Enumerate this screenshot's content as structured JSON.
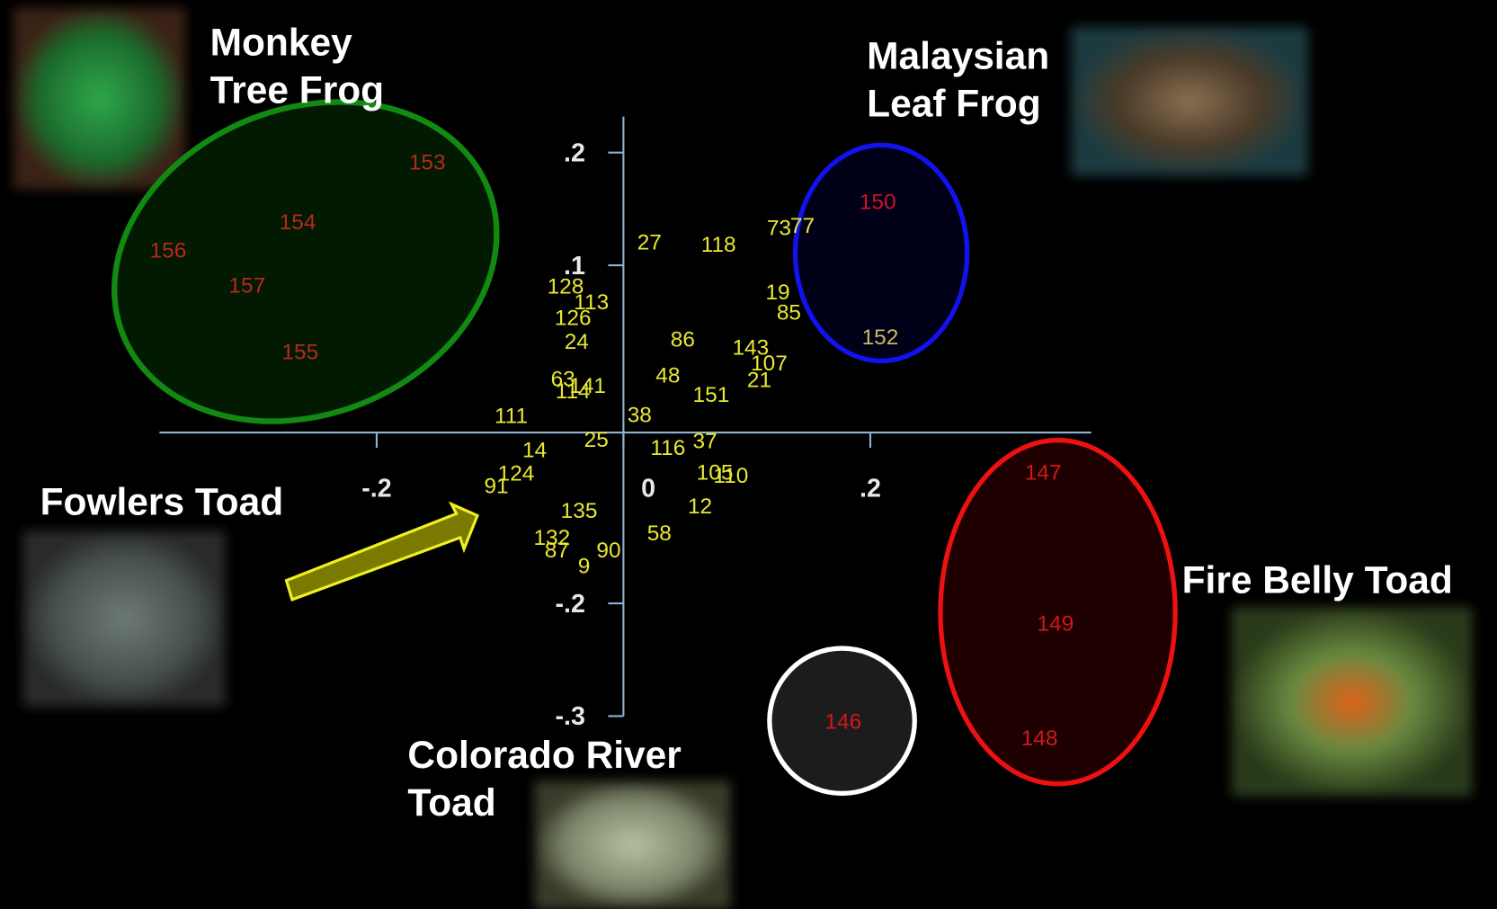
{
  "chart_data": {
    "type": "scatter",
    "xlim": [
      -0.376,
      0.379
    ],
    "ylim": [
      -0.3,
      0.232
    ],
    "xticks": [
      {
        "value": -0.2,
        "label": "-.2"
      },
      {
        "value": 0,
        "label": "0"
      },
      {
        "value": 0.2,
        "label": ".2"
      }
    ],
    "yticks": [
      {
        "value": 0.2,
        "label": ".2"
      },
      {
        "value": 0.1,
        "label": ".1"
      },
      {
        "value": -0.2,
        "label": "-.2"
      },
      {
        "value": -0.3,
        "label": "-.3"
      }
    ],
    "points": [
      {
        "label": "153",
        "x": -0.159,
        "y": 0.19,
        "color": "#b8281c"
      },
      {
        "label": "154",
        "x": -0.264,
        "y": 0.137,
        "color": "#b8281c"
      },
      {
        "label": "156",
        "x": -0.369,
        "y": 0.112,
        "color": "#b8281c"
      },
      {
        "label": "157",
        "x": -0.305,
        "y": 0.081,
        "color": "#b8281c"
      },
      {
        "label": "155",
        "x": -0.262,
        "y": 0.022,
        "color": "#b8281c"
      },
      {
        "label": "150",
        "x": 0.206,
        "y": 0.155,
        "color": "#d0102a"
      },
      {
        "label": "152",
        "x": 0.208,
        "y": 0.035,
        "color": "#c8b860"
      },
      {
        "label": "147",
        "x": 0.34,
        "y": -0.085,
        "color": "#d01818"
      },
      {
        "label": "149",
        "x": 0.35,
        "y": -0.219,
        "color": "#d01818"
      },
      {
        "label": "148",
        "x": 0.337,
        "y": -0.321,
        "color": "#d01818"
      },
      {
        "label": "146",
        "x": 0.178,
        "y": -0.306,
        "color": "#d01818"
      },
      {
        "label": "111",
        "x": -0.091,
        "y": -0.035,
        "color": "#e8e830"
      },
      {
        "label": "58",
        "x": 0.029,
        "y": -0.139,
        "color": "#e8e830"
      },
      {
        "label": "12",
        "x": 0.062,
        "y": -0.115,
        "color": "#e8e830"
      },
      {
        "label": "9",
        "x": -0.032,
        "y": -0.168,
        "color": "#e8e830"
      },
      {
        "label": "90",
        "x": -0.012,
        "y": -0.154,
        "color": "#e8e830"
      },
      {
        "label": "87",
        "x": -0.054,
        "y": -0.154,
        "color": "#e8e830"
      },
      {
        "label": "132",
        "x": -0.058,
        "y": -0.143,
        "color": "#e8e830"
      },
      {
        "label": "135",
        "x": -0.036,
        "y": -0.119,
        "color": "#e8e830"
      },
      {
        "label": "105",
        "x": 0.074,
        "y": -0.085,
        "color": "#e8e830"
      },
      {
        "label": "110",
        "x": 0.087,
        "y": -0.088,
        "color": "#e8e830"
      },
      {
        "label": "37",
        "x": 0.066,
        "y": -0.057,
        "color": "#e8e830"
      },
      {
        "label": "85",
        "x": 0.134,
        "y": 0.057,
        "color": "#e8e830"
      },
      {
        "label": "19",
        "x": 0.125,
        "y": 0.075,
        "color": "#e8e830"
      },
      {
        "label": "143",
        "x": 0.103,
        "y": 0.026,
        "color": "#e8e830"
      },
      {
        "label": "77",
        "x": 0.145,
        "y": 0.134,
        "color": "#e8e830"
      },
      {
        "label": "73",
        "x": 0.126,
        "y": 0.132,
        "color": "#e8e830"
      },
      {
        "label": "118",
        "x": 0.077,
        "y": 0.117,
        "color": "#e8e830"
      },
      {
        "label": "27",
        "x": 0.021,
        "y": 0.119,
        "color": "#e8e830"
      },
      {
        "label": "128",
        "x": -0.047,
        "y": 0.08,
        "color": "#e8e830"
      },
      {
        "label": "24",
        "x": -0.038,
        "y": 0.031,
        "color": "#e8e830"
      },
      {
        "label": "21",
        "x": 0.11,
        "y": -0.003,
        "color": "#e8e830"
      },
      {
        "label": "107",
        "x": 0.118,
        "y": 0.012,
        "color": "#e8e830"
      },
      {
        "label": "91",
        "x": -0.103,
        "y": -0.097,
        "color": "#e8e830"
      },
      {
        "label": "124",
        "x": -0.087,
        "y": -0.086,
        "color": "#e8e830"
      },
      {
        "label": "151",
        "x": 0.071,
        "y": -0.016,
        "color": "#e8e830"
      },
      {
        "label": "126",
        "x": -0.041,
        "y": 0.052,
        "color": "#e8e830"
      },
      {
        "label": "113",
        "x": -0.026,
        "y": 0.066,
        "color": "#e8e830"
      },
      {
        "label": "48",
        "x": 0.036,
        "y": 0.001,
        "color": "#e8e830"
      },
      {
        "label": "63",
        "x": -0.049,
        "y": -0.002,
        "color": "#e8e830"
      },
      {
        "label": "114",
        "x": -0.041,
        "y": -0.013,
        "color": "#e8e830"
      },
      {
        "label": "38",
        "x": 0.013,
        "y": -0.034,
        "color": "#e8e830"
      },
      {
        "label": "14",
        "x": -0.072,
        "y": -0.065,
        "color": "#e8e830"
      },
      {
        "label": "25",
        "x": -0.022,
        "y": -0.056,
        "color": "#e8e830"
      },
      {
        "label": "86",
        "x": 0.048,
        "y": 0.033,
        "color": "#e8e830"
      },
      {
        "label": "141",
        "x": -0.029,
        "y": -0.008,
        "color": "#e8e830"
      },
      {
        "label": "116",
        "x": 0.036,
        "y": -0.063,
        "color": "#e8e830"
      }
    ],
    "annotations": [
      {
        "lines": [
          "Monkey",
          "Tree Frog"
        ]
      },
      {
        "lines": [
          "Malaysian",
          "Leaf Frog"
        ]
      },
      {
        "lines": [
          "Fowlers Toad"
        ]
      },
      {
        "lines": [
          "Colorado River",
          "Toad"
        ]
      },
      {
        "lines": [
          "Fire Belly Toad"
        ]
      }
    ]
  }
}
